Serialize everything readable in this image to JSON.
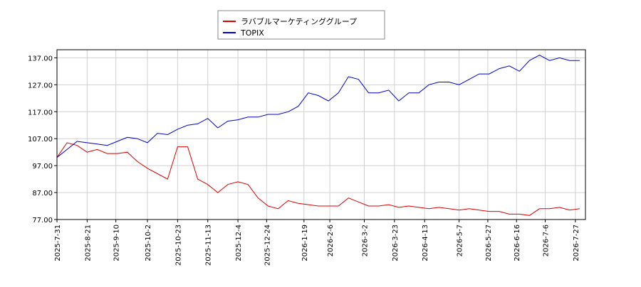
{
  "chart_data": {
    "type": "line",
    "x": [
      "2025-07-31",
      "2025-08-07",
      "2025-08-14",
      "2025-08-21",
      "2025-08-28",
      "2025-09-04",
      "2025-09-11",
      "2025-09-18",
      "2025-09-25",
      "2025-10-02",
      "2025-10-09",
      "2025-10-16",
      "2025-10-23",
      "2025-10-30",
      "2025-11-06",
      "2025-11-13",
      "2025-11-20",
      "2025-11-27",
      "2025-12-04",
      "2025-12-11",
      "2025-12-18",
      "2025-12-25",
      "2026-01-01",
      "2026-01-08",
      "2026-01-15",
      "2026-01-22",
      "2026-01-29",
      "2026-02-05",
      "2026-02-12",
      "2026-02-19",
      "2026-02-26",
      "2026-03-05",
      "2026-03-12",
      "2026-03-19",
      "2026-03-26",
      "2026-04-02",
      "2026-04-09",
      "2026-04-16",
      "2026-04-23",
      "2026-04-30",
      "2026-05-07",
      "2026-05-14",
      "2026-05-21",
      "2026-05-28",
      "2026-06-04",
      "2026-06-11",
      "2026-06-18",
      "2026-06-25",
      "2026-07-02",
      "2026-07-09",
      "2026-07-16",
      "2026-07-23",
      "2026-07-30"
    ],
    "series": [
      {
        "name": "ラバブルマーケティンググループ",
        "color": "#dd0000",
        "values": [
          100,
          105.5,
          104.5,
          102,
          103,
          101.5,
          101.5,
          102,
          98.5,
          96,
          94,
          92,
          104,
          104,
          92,
          90,
          87,
          90,
          91,
          90,
          85,
          82,
          81,
          84,
          83,
          82.5,
          82,
          82,
          82,
          85,
          83.5,
          82,
          82,
          82.5,
          81.5,
          82,
          81.5,
          81,
          81.5,
          81,
          80.5,
          81,
          80.5,
          80,
          80,
          79,
          79,
          78.5,
          81,
          81,
          81.5,
          80.5,
          81
        ]
      },
      {
        "name": "TOPIX",
        "color": "#0000cc",
        "values": [
          100,
          103,
          106,
          105.5,
          105,
          104.5,
          106,
          107.5,
          107,
          105.5,
          109,
          108.5,
          110.5,
          112,
          112.5,
          114.5,
          111,
          113.5,
          114,
          115,
          115,
          116,
          116,
          117,
          119,
          124,
          123,
          121,
          124,
          130,
          129,
          124,
          124,
          125,
          121,
          124,
          124,
          127,
          128,
          128,
          127,
          129,
          131,
          131,
          133,
          134,
          132,
          136,
          138,
          136,
          137,
          136,
          136
        ]
      }
    ],
    "xlim": [
      "2025-07-31",
      "2026-08-03"
    ],
    "xticks": [
      {
        "value": "2025-07-31",
        "label": "2025-7-31"
      },
      {
        "value": "2025-08-21",
        "label": "2025-8-21"
      },
      {
        "value": "2025-09-10",
        "label": "2025-9-10"
      },
      {
        "value": "2025-10-02",
        "label": "2025-10-2"
      },
      {
        "value": "2025-10-23",
        "label": "2025-10-23"
      },
      {
        "value": "2025-11-13",
        "label": "2025-11-13"
      },
      {
        "value": "2025-12-04",
        "label": "2025-12-4"
      },
      {
        "value": "2025-12-24",
        "label": "2025-12-24"
      },
      {
        "value": "2026-01-19",
        "label": "2026-1-19"
      },
      {
        "value": "2026-02-06",
        "label": "2026-2-6"
      },
      {
        "value": "2026-03-02",
        "label": "2026-3-2"
      },
      {
        "value": "2026-03-23",
        "label": "2026-3-23"
      },
      {
        "value": "2026-04-13",
        "label": "2026-4-13"
      },
      {
        "value": "2026-05-07",
        "label": "2026-5-7"
      },
      {
        "value": "2026-05-27",
        "label": "2026-5-27"
      },
      {
        "value": "2026-06-16",
        "label": "2026-6-16"
      },
      {
        "value": "2026-07-06",
        "label": "2026-7-6"
      },
      {
        "value": "2026-07-27",
        "label": "2026-7-27"
      }
    ],
    "ylim": [
      77,
      140
    ],
    "yticks": [
      {
        "value": 77,
        "label": "77.00"
      },
      {
        "value": 87,
        "label": "87.00"
      },
      {
        "value": 97,
        "label": "97.00"
      },
      {
        "value": 107,
        "label": "107.00"
      },
      {
        "value": 117,
        "label": "117.00"
      },
      {
        "value": 127,
        "label": "127.00"
      },
      {
        "value": 137,
        "label": "137.00"
      }
    ],
    "grid": true
  }
}
